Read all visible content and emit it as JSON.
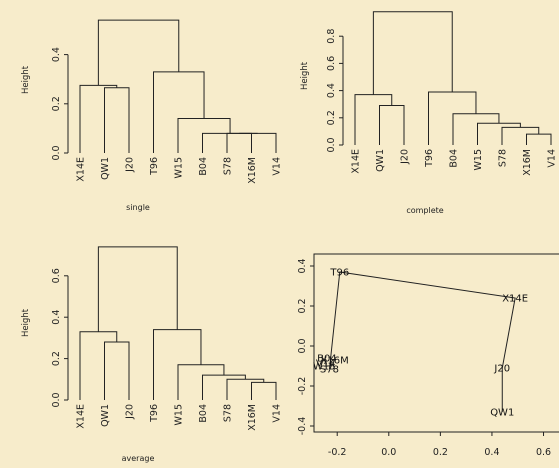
{
  "chart_data": [
    {
      "type": "dendrogram",
      "method": "single",
      "ylabel": "Height",
      "yticks": [
        0.0,
        0.2,
        0.4
      ],
      "ylim": [
        0,
        0.54
      ],
      "leaves": [
        "X14E",
        "QW1",
        "J20",
        "T96",
        "W15",
        "B04",
        "S78",
        "X16M",
        "V14"
      ],
      "merges": [
        {
          "left": "QW1",
          "right": "J20",
          "height": 0.265
        },
        {
          "left": "X14E",
          "right": [
            "QW1",
            "J20"
          ],
          "height": 0.275
        },
        {
          "left": "S78",
          "right": "X16M",
          "height": 0.08
        },
        {
          "left": [
            "S78",
            "X16M"
          ],
          "right": "V14",
          "height": 0.08
        },
        {
          "left": "B04",
          "right": [
            "S78",
            "X16M",
            "V14"
          ],
          "height": 0.08
        },
        {
          "left": "W15",
          "right": [
            "B04",
            "S78",
            "X16M",
            "V14"
          ],
          "height": 0.14
        },
        {
          "left": "T96",
          "right": [
            "W15",
            "B04",
            "S78",
            "X16M",
            "V14"
          ],
          "height": 0.33
        },
        {
          "left": [
            "X14E",
            "QW1",
            "J20"
          ],
          "right": [
            "T96",
            "W15",
            "B04",
            "S78",
            "X16M",
            "V14"
          ],
          "height": 0.54
        }
      ]
    },
    {
      "type": "dendrogram",
      "method": "complete",
      "ylabel": "Height",
      "yticks": [
        0.0,
        0.2,
        0.4,
        0.6,
        0.8
      ],
      "ylim": [
        0,
        0.98
      ],
      "leaves": [
        "X14E",
        "QW1",
        "J20",
        "T96",
        "B04",
        "W15",
        "S78",
        "X16M",
        "V14"
      ],
      "merges": [
        {
          "left": "QW1",
          "right": "J20",
          "height": 0.29
        },
        {
          "left": "X14E",
          "right": [
            "QW1",
            "J20"
          ],
          "height": 0.37
        },
        {
          "left": "X16M",
          "right": "V14",
          "height": 0.08
        },
        {
          "left": "S78",
          "right": [
            "X16M",
            "V14"
          ],
          "height": 0.13
        },
        {
          "left": "W15",
          "right": [
            "S78",
            "X16M",
            "V14"
          ],
          "height": 0.16
        },
        {
          "left": "B04",
          "right": [
            "W15",
            "S78",
            "X16M",
            "V14"
          ],
          "height": 0.23
        },
        {
          "left": "T96",
          "right": [
            "B04",
            "W15",
            "S78",
            "X16M",
            "V14"
          ],
          "height": 0.39
        },
        {
          "left": [
            "X14E",
            "QW1",
            "J20"
          ],
          "right": [
            "T96",
            "B04",
            "W15",
            "S78",
            "X16M",
            "V14"
          ],
          "height": 0.98
        }
      ]
    },
    {
      "type": "dendrogram",
      "method": "average",
      "ylabel": "Height",
      "yticks": [
        0.0,
        0.2,
        0.4,
        0.6
      ],
      "ylim": [
        0,
        0.75
      ],
      "leaves": [
        "X14E",
        "QW1",
        "J20",
        "T96",
        "W15",
        "B04",
        "S78",
        "X16M",
        "V14"
      ],
      "merges": [
        {
          "left": "QW1",
          "right": "J20",
          "height": 0.28
        },
        {
          "left": "X14E",
          "right": [
            "QW1",
            "J20"
          ],
          "height": 0.33
        },
        {
          "left": "X16M",
          "right": "V14",
          "height": 0.085
        },
        {
          "left": "S78",
          "right": [
            "X16M",
            "V14"
          ],
          "height": 0.1
        },
        {
          "left": "B04",
          "right": [
            "S78",
            "X16M",
            "V14"
          ],
          "height": 0.12
        },
        {
          "left": "W15",
          "right": [
            "B04",
            "S78",
            "X16M",
            "V14"
          ],
          "height": 0.17
        },
        {
          "left": "T96",
          "right": [
            "W15",
            "B04",
            "S78",
            "X16M",
            "V14"
          ],
          "height": 0.34
        },
        {
          "left": [
            "X14E",
            "QW1",
            "J20"
          ],
          "right": [
            "T96",
            "W15",
            "B04",
            "S78",
            "X16M",
            "V14"
          ],
          "height": 0.74
        }
      ]
    },
    {
      "type": "scatter",
      "xticks": [
        -0.2,
        0.0,
        0.2,
        0.4,
        0.6
      ],
      "yticks": [
        -0.4,
        -0.2,
        0.0,
        0.2,
        0.4
      ],
      "xlim": [
        -0.29,
        0.66
      ],
      "ylim": [
        -0.43,
        0.46
      ],
      "connected": true,
      "points": [
        {
          "label": "T96",
          "x": -0.19,
          "y": 0.37
        },
        {
          "label": "X14E",
          "x": 0.49,
          "y": 0.24
        },
        {
          "label": "J20",
          "x": 0.44,
          "y": -0.11
        },
        {
          "label": "QW1",
          "x": 0.44,
          "y": -0.33
        },
        {
          "label": "B04",
          "x": -0.24,
          "y": -0.06
        },
        {
          "label": "X16M",
          "x": -0.21,
          "y": -0.07
        },
        {
          "label": "V14",
          "x": -0.245,
          "y": -0.085
        },
        {
          "label": "W15",
          "x": -0.25,
          "y": -0.1
        },
        {
          "label": "S78",
          "x": -0.23,
          "y": -0.115
        }
      ],
      "path_order": [
        "S78",
        "T96",
        "X14E",
        "J20",
        "QW1"
      ]
    }
  ]
}
